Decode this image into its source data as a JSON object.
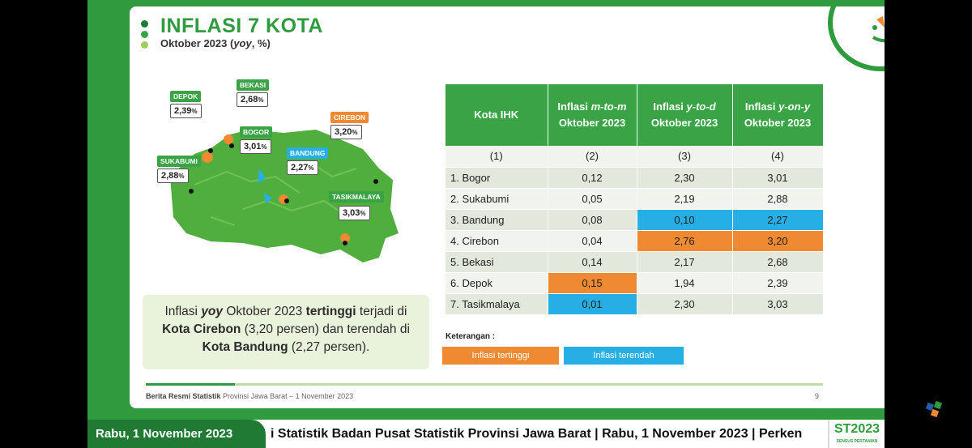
{
  "title": "INFLASI 7 KOTA",
  "subtitle_prefix": "Oktober 2023 (",
  "subtitle_italic": "yoy",
  "subtitle_suffix": ", %)",
  "colors": {
    "green": "#3aa345",
    "highest": "#f08a32",
    "lowest": "#27aee5",
    "dark_green": "#217a34"
  },
  "map_labels": [
    {
      "city": "DEPOK",
      "value": "2,39",
      "tag_color": "#3aa345"
    },
    {
      "city": "BEKASI",
      "value": "2,68",
      "tag_color": "#3aa345"
    },
    {
      "city": "BOGOR",
      "value": "3,01",
      "tag_color": "#3aa345"
    },
    {
      "city": "CIREBON",
      "value": "3,20",
      "tag_color": "#f08a32"
    },
    {
      "city": "SUKABUMI",
      "value": "2,88",
      "tag_color": "#3aa345"
    },
    {
      "city": "BANDUNG",
      "value": "2,27",
      "tag_color": "#27aee5"
    },
    {
      "city": "TASIKMALAYA",
      "value": "3,03",
      "tag_color": "#3aa345"
    }
  ],
  "callout": {
    "t1": "Inflasi ",
    "t2": "yoy",
    "t3": " Oktober 2023 ",
    "t4": "tertinggi",
    "t5": " terjadi di ",
    "t6": "Kota Cirebon",
    "t7": " (3,20 persen) dan terendah di ",
    "t8": "Kota Bandung",
    "t9": " (2,27 persen)."
  },
  "table": {
    "headers": [
      {
        "line1": "Kota IHK",
        "italic": "",
        "line2": ""
      },
      {
        "line1": "Inflasi ",
        "italic": "m-to-m",
        "line2": "Oktober 2023"
      },
      {
        "line1": "Inflasi ",
        "italic": "y-to-d",
        "line2": "Oktober 2023"
      },
      {
        "line1": "Inflasi ",
        "italic": "y-on-y",
        "line2": "Oktober 2023"
      }
    ],
    "index_row": [
      "(1)",
      "(2)",
      "(3)",
      "(4)"
    ],
    "rows": [
      {
        "kota": "1. Bogor",
        "mtm": "0,12",
        "ytd": "2,30",
        "yoy": "3,01"
      },
      {
        "kota": "2. Sukabumi",
        "mtm": "0,05",
        "ytd": "2,19",
        "yoy": "2,88"
      },
      {
        "kota": "3. Bandung",
        "mtm": "0,08",
        "ytd": "0,10",
        "yoy": "2,27"
      },
      {
        "kota": "4. Cirebon",
        "mtm": "0,04",
        "ytd": "2,76",
        "yoy": "3,20"
      },
      {
        "kota": "5. Bekasi",
        "mtm": "0,14",
        "ytd": "2,17",
        "yoy": "2,68"
      },
      {
        "kota": "6. Depok",
        "mtm": "0,15",
        "ytd": "1,94",
        "yoy": "2,39"
      },
      {
        "kota": "7. Tasikmalaya",
        "mtm": "0,01",
        "ytd": "2,30",
        "yoy": "3,03"
      }
    ]
  },
  "keterangan": "Keterangan :",
  "legend_high": "Inflasi tertinggi",
  "legend_low": "Inflasi terendah",
  "footer_bold": "Berita Resmi Statistik",
  "footer_rest": " Provinsi Jawa Barat – 1 November 2023",
  "page_number": "9",
  "bottom_bar": {
    "date": "Rabu, 1 November 2023",
    "ticker": "i Statistik Badan Pusat Statistik Provinsi Jawa Barat | Rabu, 1 November 2023 | Perken",
    "logo": "ST2023",
    "logo_sub": "SENSUS PERTANIAN"
  }
}
